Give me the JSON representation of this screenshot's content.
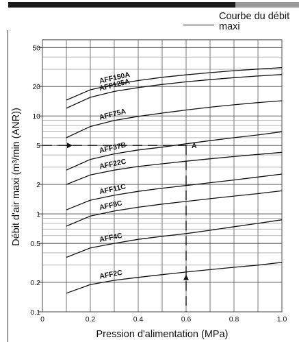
{
  "header": {
    "bar_colors": {
      "dark": "#1a1a1a",
      "light": "#9a9a9a"
    }
  },
  "legend": {
    "label": "Courbe du débit maxi"
  },
  "chart_data": {
    "type": "line",
    "xlabel": "Pression d'alimentation (MPa)",
    "ylabel": "Débit d'air maxi (m³/min (ANR))",
    "xlim": [
      0,
      1.0
    ],
    "ylim": [
      0.1,
      60
    ],
    "y_scale": "log",
    "grid": true,
    "x_ticks": [
      0,
      0.1,
      0.2,
      0.3,
      0.4,
      0.5,
      0.6,
      0.7,
      0.8,
      0.9,
      1.0
    ],
    "x_tick_labels": [
      "0",
      "0.2",
      "0.4",
      "0.6",
      "0.8",
      "1.0"
    ],
    "x_tick_label_values": [
      0,
      0.2,
      0.4,
      0.6,
      0.8,
      1.0
    ],
    "y_tick_labels": [
      "0.1",
      "0.2",
      "0.5",
      "1",
      "2",
      "5",
      "10",
      "20",
      "50"
    ],
    "y_tick_values": [
      0.1,
      0.2,
      0.5,
      1,
      2,
      5,
      10,
      20,
      50
    ],
    "y_grid_values": [
      0.1,
      0.2,
      0.3,
      0.4,
      0.5,
      0.6,
      0.7,
      0.8,
      0.9,
      1,
      2,
      3,
      4,
      5,
      6,
      7,
      8,
      9,
      10,
      20,
      30,
      40,
      50
    ],
    "x": [
      0.1,
      0.2,
      0.3,
      0.4,
      0.5,
      0.6,
      0.7,
      0.8,
      0.9,
      1.0
    ],
    "series": [
      {
        "name": "AFF150A",
        "values": [
          14.5,
          18.5,
          21.0,
          23.0,
          24.8,
          26.3,
          27.7,
          29.0,
          30.1,
          31.2
        ]
      },
      {
        "name": "AFF125A",
        "values": [
          12.0,
          15.5,
          17.8,
          19.5,
          21.0,
          22.3,
          23.5,
          24.6,
          25.6,
          26.5
        ]
      },
      {
        "name": "AFF75A",
        "values": [
          6.0,
          7.8,
          9.0,
          9.9,
          10.7,
          11.5,
          12.3,
          13.0,
          13.7,
          14.3
        ]
      },
      {
        "name": "AFF37B",
        "values": [
          2.8,
          3.6,
          4.1,
          4.5,
          4.8,
          5.2,
          5.6,
          6.0,
          6.4,
          6.9
        ]
      },
      {
        "name": "AFF22C",
        "values": [
          2.0,
          2.5,
          2.8,
          3.05,
          3.25,
          3.45,
          3.65,
          3.85,
          4.05,
          4.25
        ]
      },
      {
        "name": "AFF11C",
        "values": [
          1.1,
          1.38,
          1.55,
          1.7,
          1.83,
          1.95,
          2.08,
          2.22,
          2.38,
          2.55
        ]
      },
      {
        "name": "AFF8C",
        "values": [
          0.75,
          0.95,
          1.07,
          1.17,
          1.26,
          1.34,
          1.43,
          1.52,
          1.61,
          1.72
        ]
      },
      {
        "name": "AFF4C",
        "values": [
          0.36,
          0.45,
          0.5,
          0.55,
          0.59,
          0.63,
          0.68,
          0.74,
          0.8,
          0.87
        ]
      },
      {
        "name": "AFF2C",
        "values": [
          0.155,
          0.19,
          0.21,
          0.225,
          0.24,
          0.255,
          0.27,
          0.285,
          0.3,
          0.32
        ]
      }
    ],
    "annotations": [
      {
        "label": "A",
        "x": 0.6,
        "y": 5
      }
    ],
    "guides": {
      "x": 0.6,
      "y": 5
    }
  }
}
